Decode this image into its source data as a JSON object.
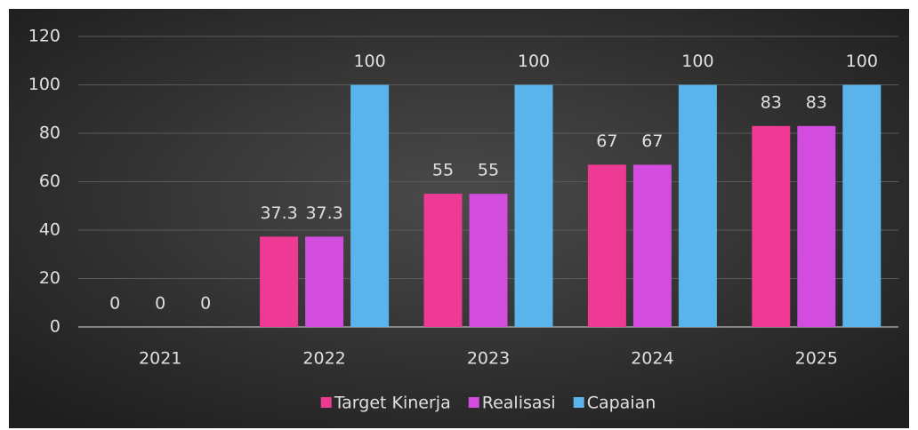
{
  "chart_data": {
    "type": "bar",
    "categories": [
      "2021",
      "2022",
      "2023",
      "2024",
      "2025"
    ],
    "series": [
      {
        "name": "Target Kinerja",
        "color": "#ef3a95",
        "values": [
          0,
          37.3,
          55,
          67,
          83
        ]
      },
      {
        "name": "Realisasi",
        "color": "#d24ddd",
        "values": [
          0,
          37.3,
          55,
          67,
          83
        ]
      },
      {
        "name": "Capaian",
        "color": "#5ab3ea",
        "values": [
          0,
          100,
          100,
          100,
          100
        ]
      }
    ],
    "ylim": [
      0,
      120
    ],
    "yticks": [
      0,
      20,
      40,
      60,
      80,
      100,
      120
    ],
    "grid": true,
    "legend": "bottom"
  }
}
